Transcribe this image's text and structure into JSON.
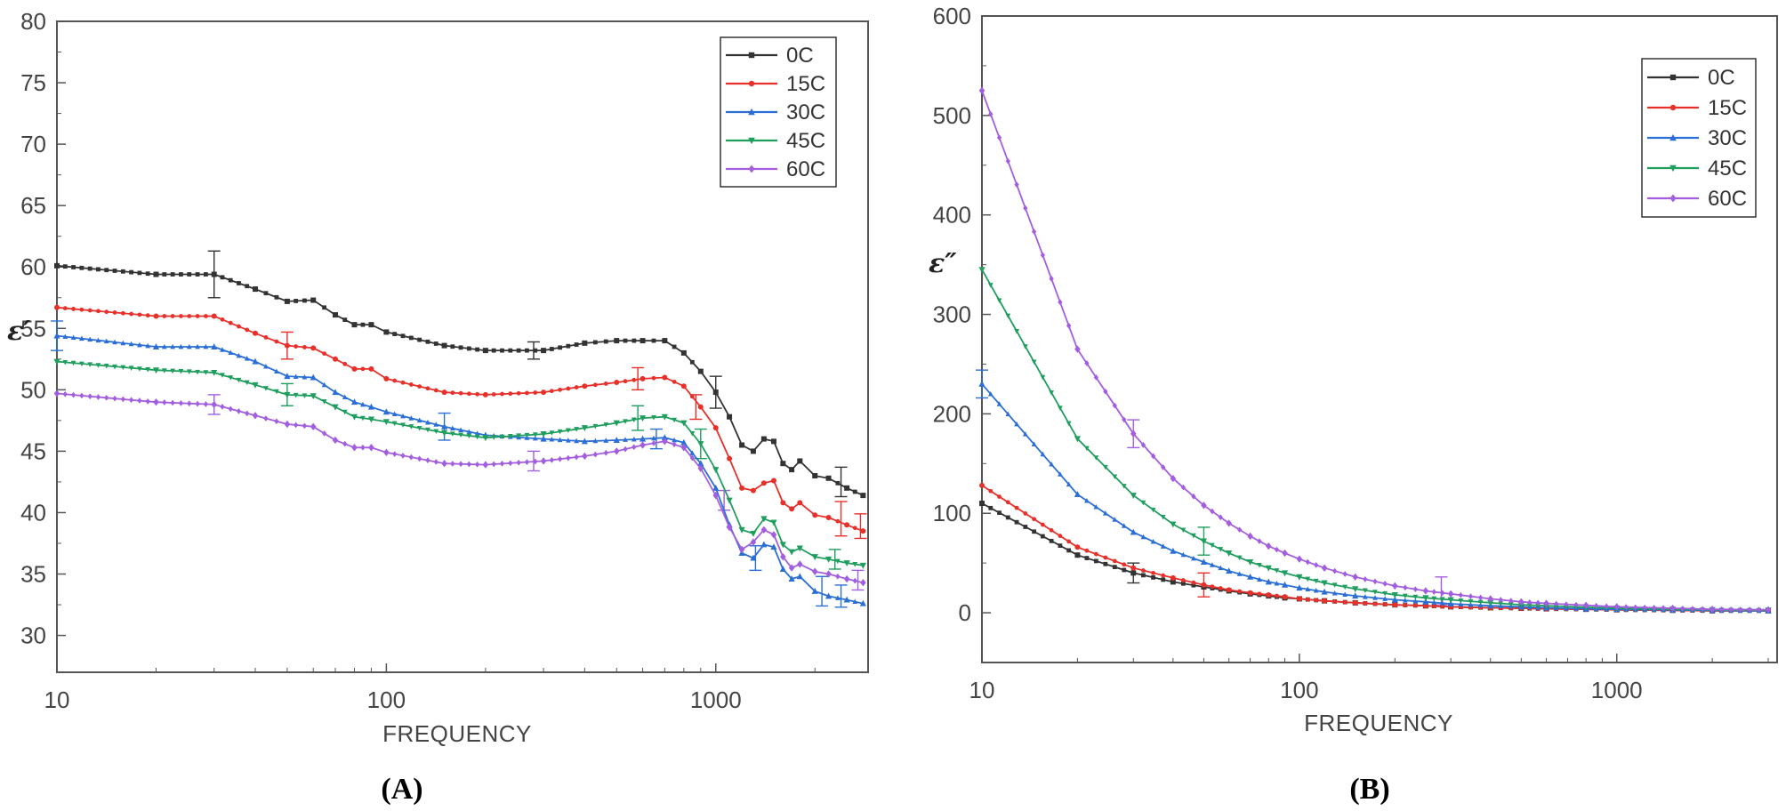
{
  "chart_data": [
    {
      "panel_label": "(A)",
      "type": "line",
      "title": "",
      "xlabel": "FREQUENCY",
      "ylabel": "ε′",
      "xscale": "log",
      "xlim": [
        10,
        2900
      ],
      "ylim": [
        27,
        80
      ],
      "x_ticks": [
        10,
        100,
        1000
      ],
      "x_tick_labels": [
        "10",
        "100",
        "1000"
      ],
      "y_ticks": [
        30,
        35,
        40,
        45,
        50,
        55,
        60,
        65,
        70,
        75,
        80
      ],
      "y_tick_labels": [
        "30",
        "35",
        "40",
        "45",
        "50",
        "55",
        "60",
        "65",
        "70",
        "75",
        "80"
      ],
      "legend_position": "top-right",
      "series": [
        {
          "name": "0C",
          "color": "#333333",
          "marker": "square",
          "x": [
            10,
            20,
            30,
            40,
            50,
            60,
            70,
            80,
            90,
            100,
            150,
            200,
            300,
            400,
            500,
            600,
            700,
            800,
            900,
            1000,
            1100,
            1200,
            1300,
            1400,
            1500,
            1600,
            1700,
            1800,
            2000,
            2200,
            2500,
            2800
          ],
          "y": [
            60.1,
            59.4,
            59.4,
            58.2,
            57.2,
            57.3,
            56.1,
            55.3,
            55.3,
            54.7,
            53.6,
            53.2,
            53.2,
            53.8,
            54.0,
            54.0,
            54.0,
            53.0,
            51.5,
            49.8,
            47.8,
            45.5,
            45.0,
            46.0,
            45.8,
            44.0,
            43.5,
            44.2,
            43.0,
            42.8,
            42.0,
            41.4
          ],
          "error_bars": [
            {
              "x": 30,
              "y": 59.4,
              "err": 1.9
            },
            {
              "x": 280,
              "y": 53.2,
              "err": 0.7
            },
            {
              "x": 1000,
              "y": 49.8,
              "err": 1.3
            },
            {
              "x": 2400,
              "y": 42.5,
              "err": 1.2
            }
          ]
        },
        {
          "name": "15C",
          "color": "#e8302a",
          "marker": "circle",
          "x": [
            10,
            20,
            30,
            40,
            50,
            60,
            70,
            80,
            90,
            100,
            150,
            200,
            300,
            400,
            500,
            600,
            700,
            800,
            900,
            1000,
            1100,
            1200,
            1300,
            1400,
            1500,
            1600,
            1700,
            1800,
            2000,
            2200,
            2500,
            2800
          ],
          "y": [
            56.7,
            56.0,
            56.0,
            54.6,
            53.6,
            53.4,
            52.5,
            51.7,
            51.7,
            50.9,
            49.8,
            49.6,
            49.8,
            50.3,
            50.6,
            50.9,
            51.0,
            50.3,
            48.6,
            46.9,
            44.4,
            42.0,
            41.8,
            42.4,
            42.6,
            40.8,
            40.3,
            40.8,
            39.8,
            39.6,
            39.0,
            38.5
          ],
          "error_bars": [
            {
              "x": 50,
              "y": 53.6,
              "err": 1.1
            },
            {
              "x": 580,
              "y": 50.9,
              "err": 0.9
            },
            {
              "x": 870,
              "y": 48.6,
              "err": 1.0
            },
            {
              "x": 2400,
              "y": 39.5,
              "err": 1.4
            },
            {
              "x": 2750,
              "y": 38.9,
              "err": 1.0
            }
          ]
        },
        {
          "name": "30C",
          "color": "#2b6fd6",
          "marker": "triangle-up",
          "x": [
            10,
            20,
            30,
            40,
            50,
            60,
            70,
            80,
            90,
            100,
            150,
            200,
            300,
            400,
            500,
            600,
            700,
            800,
            900,
            1000,
            1100,
            1200,
            1300,
            1400,
            1500,
            1600,
            1700,
            1800,
            2000,
            2200,
            2500,
            2800
          ],
          "y": [
            54.4,
            53.5,
            53.5,
            52.3,
            51.1,
            51.0,
            49.8,
            49.0,
            48.6,
            48.2,
            47.0,
            46.3,
            46.0,
            45.8,
            45.9,
            46.0,
            46.1,
            45.7,
            44.0,
            42.0,
            39.0,
            36.7,
            36.3,
            37.4,
            37.2,
            35.4,
            34.6,
            34.8,
            33.6,
            33.2,
            32.9,
            32.6
          ],
          "error_bars": [
            {
              "x": 10,
              "y": 54.4,
              "err": 1.2
            },
            {
              "x": 150,
              "y": 47.0,
              "err": 1.1
            },
            {
              "x": 660,
              "y": 46.0,
              "err": 0.8
            },
            {
              "x": 1320,
              "y": 36.3,
              "err": 1.0
            },
            {
              "x": 2100,
              "y": 33.6,
              "err": 1.2
            },
            {
              "x": 2400,
              "y": 33.2,
              "err": 0.9
            }
          ]
        },
        {
          "name": "45C",
          "color": "#1f9e5e",
          "marker": "triangle-down",
          "x": [
            10,
            20,
            30,
            40,
            50,
            60,
            70,
            80,
            90,
            100,
            150,
            200,
            300,
            400,
            500,
            600,
            700,
            800,
            900,
            1000,
            1100,
            1200,
            1300,
            1400,
            1500,
            1600,
            1700,
            1800,
            2000,
            2200,
            2500,
            2800
          ],
          "y": [
            52.3,
            51.6,
            51.4,
            50.4,
            49.6,
            49.5,
            48.6,
            47.8,
            47.6,
            47.4,
            46.5,
            46.1,
            46.4,
            46.9,
            47.3,
            47.7,
            47.8,
            47.3,
            45.6,
            43.5,
            41.0,
            38.6,
            38.3,
            39.5,
            39.2,
            37.4,
            36.8,
            37.1,
            36.4,
            36.2,
            35.9,
            35.7
          ],
          "error_bars": [
            {
              "x": 50,
              "y": 49.6,
              "err": 0.9
            },
            {
              "x": 580,
              "y": 47.7,
              "err": 1.0
            },
            {
              "x": 900,
              "y": 45.6,
              "err": 1.2
            },
            {
              "x": 2300,
              "y": 36.2,
              "err": 0.8
            }
          ]
        },
        {
          "name": "60C",
          "color": "#a35ee0",
          "marker": "diamond",
          "x": [
            10,
            20,
            30,
            40,
            50,
            60,
            70,
            80,
            90,
            100,
            150,
            200,
            300,
            400,
            500,
            600,
            700,
            800,
            900,
            1000,
            1100,
            1200,
            1300,
            1400,
            1500,
            1600,
            1700,
            1800,
            2000,
            2200,
            2500,
            2800
          ],
          "y": [
            49.7,
            49.0,
            48.8,
            47.9,
            47.2,
            47.0,
            45.9,
            45.3,
            45.3,
            44.9,
            44.0,
            43.9,
            44.2,
            44.6,
            45.0,
            45.5,
            45.8,
            45.3,
            43.6,
            41.4,
            38.8,
            37.0,
            37.6,
            38.6,
            38.2,
            36.4,
            35.5,
            35.8,
            35.2,
            35.0,
            34.6,
            34.3
          ],
          "error_bars": [
            {
              "x": 30,
              "y": 48.8,
              "err": 0.8
            },
            {
              "x": 280,
              "y": 44.2,
              "err": 0.8
            },
            {
              "x": 1060,
              "y": 41.0,
              "err": 0.8
            },
            {
              "x": 2700,
              "y": 34.5,
              "err": 0.8
            }
          ]
        }
      ]
    },
    {
      "panel_label": "(B)",
      "type": "line",
      "title": "",
      "xlabel": "FREQUENCY",
      "ylabel": "ε″",
      "xscale": "log",
      "xlim": [
        10,
        3200
      ],
      "ylim": [
        -50,
        600
      ],
      "x_ticks": [
        10,
        100,
        1000
      ],
      "x_tick_labels": [
        "10",
        "100",
        "1000"
      ],
      "y_ticks": [
        0,
        100,
        200,
        300,
        400,
        500,
        600
      ],
      "y_tick_labels": [
        "0",
        "100",
        "200",
        "300",
        "400",
        "500",
        "600"
      ],
      "legend_position": "top-right",
      "series": [
        {
          "name": "0C",
          "color": "#333333",
          "marker": "square",
          "x": [
            10,
            20,
            30,
            40,
            50,
            60,
            70,
            80,
            90,
            100,
            120,
            150,
            200,
            250,
            300,
            400,
            500,
            600,
            800,
            1000,
            1500,
            2000,
            3000
          ],
          "y": [
            110,
            58,
            40,
            31,
            26,
            22,
            19,
            17,
            15,
            14,
            12,
            10,
            8,
            7,
            6,
            5,
            4.5,
            4,
            3.5,
            3,
            2.5,
            2,
            2
          ],
          "error_bars": [
            {
              "x": 30,
              "y": 40,
              "err": 10
            }
          ]
        },
        {
          "name": "15C",
          "color": "#e8302a",
          "marker": "circle",
          "x": [
            10,
            20,
            30,
            40,
            50,
            60,
            70,
            80,
            90,
            100,
            120,
            150,
            200,
            250,
            300,
            400,
            500,
            600,
            800,
            1000,
            1500,
            2000,
            3000
          ],
          "y": [
            128,
            66,
            45,
            35,
            28,
            23,
            20,
            18,
            16,
            14,
            12,
            10,
            8,
            7,
            6,
            5,
            4.5,
            4,
            3.5,
            3,
            2.5,
            2,
            2
          ],
          "error_bars": [
            {
              "x": 50,
              "y": 28,
              "err": 12
            }
          ]
        },
        {
          "name": "30C",
          "color": "#2b6fd6",
          "marker": "triangle-up",
          "x": [
            10,
            20,
            30,
            40,
            50,
            60,
            70,
            80,
            90,
            100,
            120,
            150,
            200,
            250,
            300,
            400,
            500,
            600,
            800,
            1000,
            1500,
            2000,
            3000
          ],
          "y": [
            230,
            119,
            81,
            62,
            51,
            42,
            36,
            31,
            28,
            25,
            21,
            17,
            13,
            11,
            9,
            7,
            6,
            5,
            4,
            3.5,
            3,
            2.5,
            2
          ],
          "error_bars": [
            {
              "x": 10,
              "y": 230,
              "err": 14
            }
          ]
        },
        {
          "name": "45C",
          "color": "#1f9e5e",
          "marker": "triangle-down",
          "x": [
            10,
            20,
            30,
            40,
            50,
            60,
            70,
            80,
            90,
            100,
            120,
            150,
            200,
            250,
            300,
            400,
            500,
            600,
            800,
            1000,
            1500,
            2000,
            3000
          ],
          "y": [
            345,
            175,
            118,
            89,
            72,
            60,
            51,
            45,
            40,
            36,
            30,
            24,
            18,
            15,
            13,
            10,
            8,
            7,
            5.5,
            4.5,
            3.5,
            3,
            2.5
          ],
          "error_bars": [
            {
              "x": 50,
              "y": 72,
              "err": 14
            }
          ]
        },
        {
          "name": "60C",
          "color": "#a35ee0",
          "marker": "diamond",
          "x": [
            10,
            20,
            30,
            40,
            50,
            60,
            70,
            80,
            90,
            100,
            120,
            150,
            200,
            250,
            300,
            400,
            500,
            600,
            800,
            1000,
            1500,
            2000,
            3000
          ],
          "y": [
            525,
            265,
            180,
            135,
            108,
            90,
            77,
            67,
            60,
            54,
            45,
            36,
            27,
            22,
            19,
            14,
            11,
            9.5,
            7.5,
            6,
            4.5,
            3.5,
            3
          ],
          "error_bars": [
            {
              "x": 30,
              "y": 180,
              "err": 14
            },
            {
              "x": 280,
              "y": 22,
              "err": 14
            }
          ]
        }
      ]
    }
  ]
}
